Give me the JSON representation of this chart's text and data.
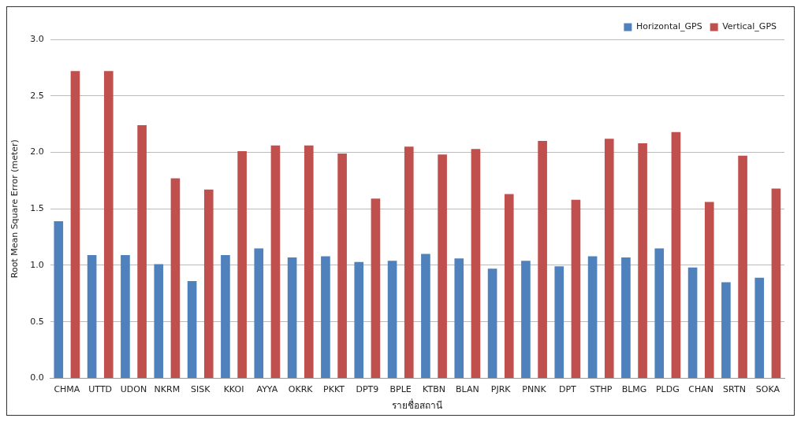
{
  "chart_data": {
    "type": "bar",
    "xlabel": "รายชื่อสถานี",
    "ylabel": "Root Mean Square Error (meter)",
    "categories": [
      "CHMA",
      "UTTD",
      "UDON",
      "NKRM",
      "SISK",
      "KKOI",
      "AYYA",
      "OKRK",
      "PKKT",
      "DPT9",
      "BPLE",
      "KTBN",
      "BLAN",
      "PJRK",
      "PNNK",
      "DPT",
      "STHP",
      "BLMG",
      "PLDG",
      "CHAN",
      "SRTN",
      "SOKA"
    ],
    "series": [
      {
        "name": "Horizontal_GPS",
        "color": "#4f81bd",
        "values": [
          1.39,
          1.09,
          1.09,
          1.01,
          0.86,
          1.09,
          1.15,
          1.07,
          1.08,
          1.03,
          1.04,
          1.1,
          1.06,
          0.97,
          1.04,
          0.99,
          1.08,
          1.07,
          1.15,
          0.98,
          0.85,
          0.89
        ]
      },
      {
        "name": "Vertical_GPS",
        "color": "#c0504d",
        "values": [
          2.72,
          2.72,
          2.24,
          1.77,
          1.67,
          2.01,
          2.06,
          2.06,
          1.99,
          1.59,
          2.05,
          1.98,
          2.03,
          1.63,
          2.1,
          1.58,
          2.12,
          2.08,
          2.18,
          1.56,
          1.97,
          1.68
        ]
      }
    ],
    "ylim": [
      0,
      3
    ],
    "yticks": [
      {
        "value": 0,
        "label": "0.0"
      },
      {
        "value": 0.5,
        "label": "0.5"
      },
      {
        "value": 1,
        "label": "1.0"
      },
      {
        "value": 1.5,
        "label": "1.5"
      },
      {
        "value": 2,
        "label": "2.0"
      },
      {
        "value": 2.5,
        "label": "2.5"
      },
      {
        "value": 3,
        "label": "3.0"
      }
    ],
    "grid": "y",
    "legend": "top right"
  }
}
